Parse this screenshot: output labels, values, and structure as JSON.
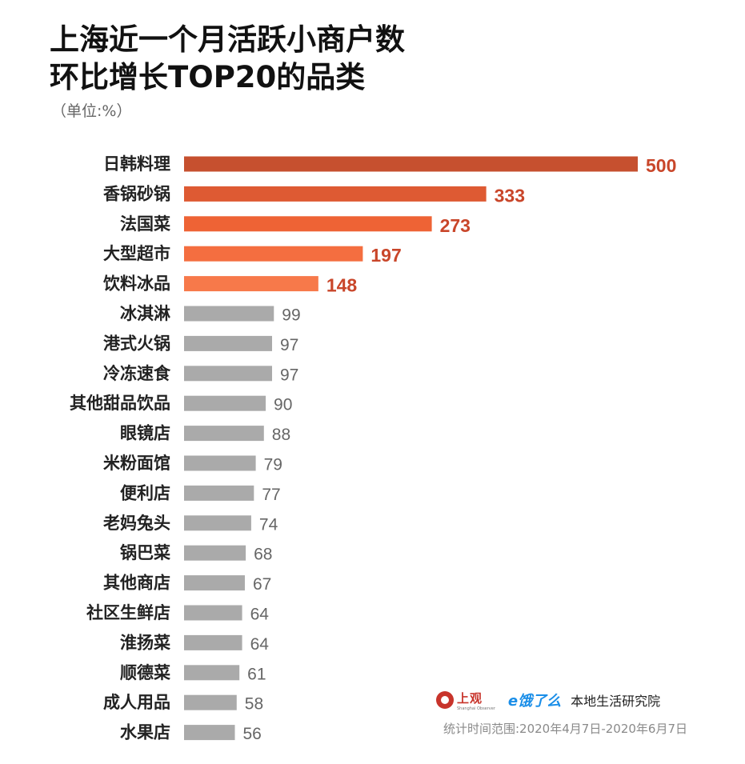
{
  "header": {
    "title_line1": "上海近一个月活跃小商户数",
    "title_line2": "环比增长TOP20的品类",
    "unit": "（单位:%）"
  },
  "footer": {
    "logo_shangguan": "上观",
    "logo_shangguan_sub": "Shanghai Observer",
    "logo_eleme": "e饿了么",
    "org": "本地生活研究院",
    "period": "统计时间范围:2020年4月7日-2020年6月7日"
  },
  "colors": {
    "top_bars": [
      "#c6502f",
      "#de5a33",
      "#ee6335",
      "#f46e40",
      "#f7794a"
    ],
    "top_labels": "#c9462a",
    "other_bars": "#aaaaaa",
    "other_labels": "#666666",
    "category_text": "#222222"
  },
  "chart_data": {
    "type": "bar",
    "orientation": "horizontal",
    "title": "上海近一个月活跃小商户数环比增长TOP20的品类",
    "unit": "（单位:%）",
    "categories": [
      "日韩料理",
      "香锅砂锅",
      "法国菜",
      "大型超市",
      "饮料冰品",
      "冰淇淋",
      "港式火锅",
      "冷冻速食",
      "其他甜品饮品",
      "眼镜店",
      "米粉面馆",
      "便利店",
      "老妈兔头",
      "锅巴菜",
      "其他商店",
      "社区生鲜店",
      "淮扬菜",
      "顺德菜",
      "成人用品",
      "水果店"
    ],
    "values": [
      500,
      333,
      273,
      197,
      148,
      99,
      97,
      97,
      90,
      88,
      79,
      77,
      74,
      68,
      67,
      64,
      64,
      61,
      58,
      56
    ],
    "highlight_count": 5,
    "xlim": [
      0,
      500
    ],
    "grid": false,
    "legend": "none"
  }
}
